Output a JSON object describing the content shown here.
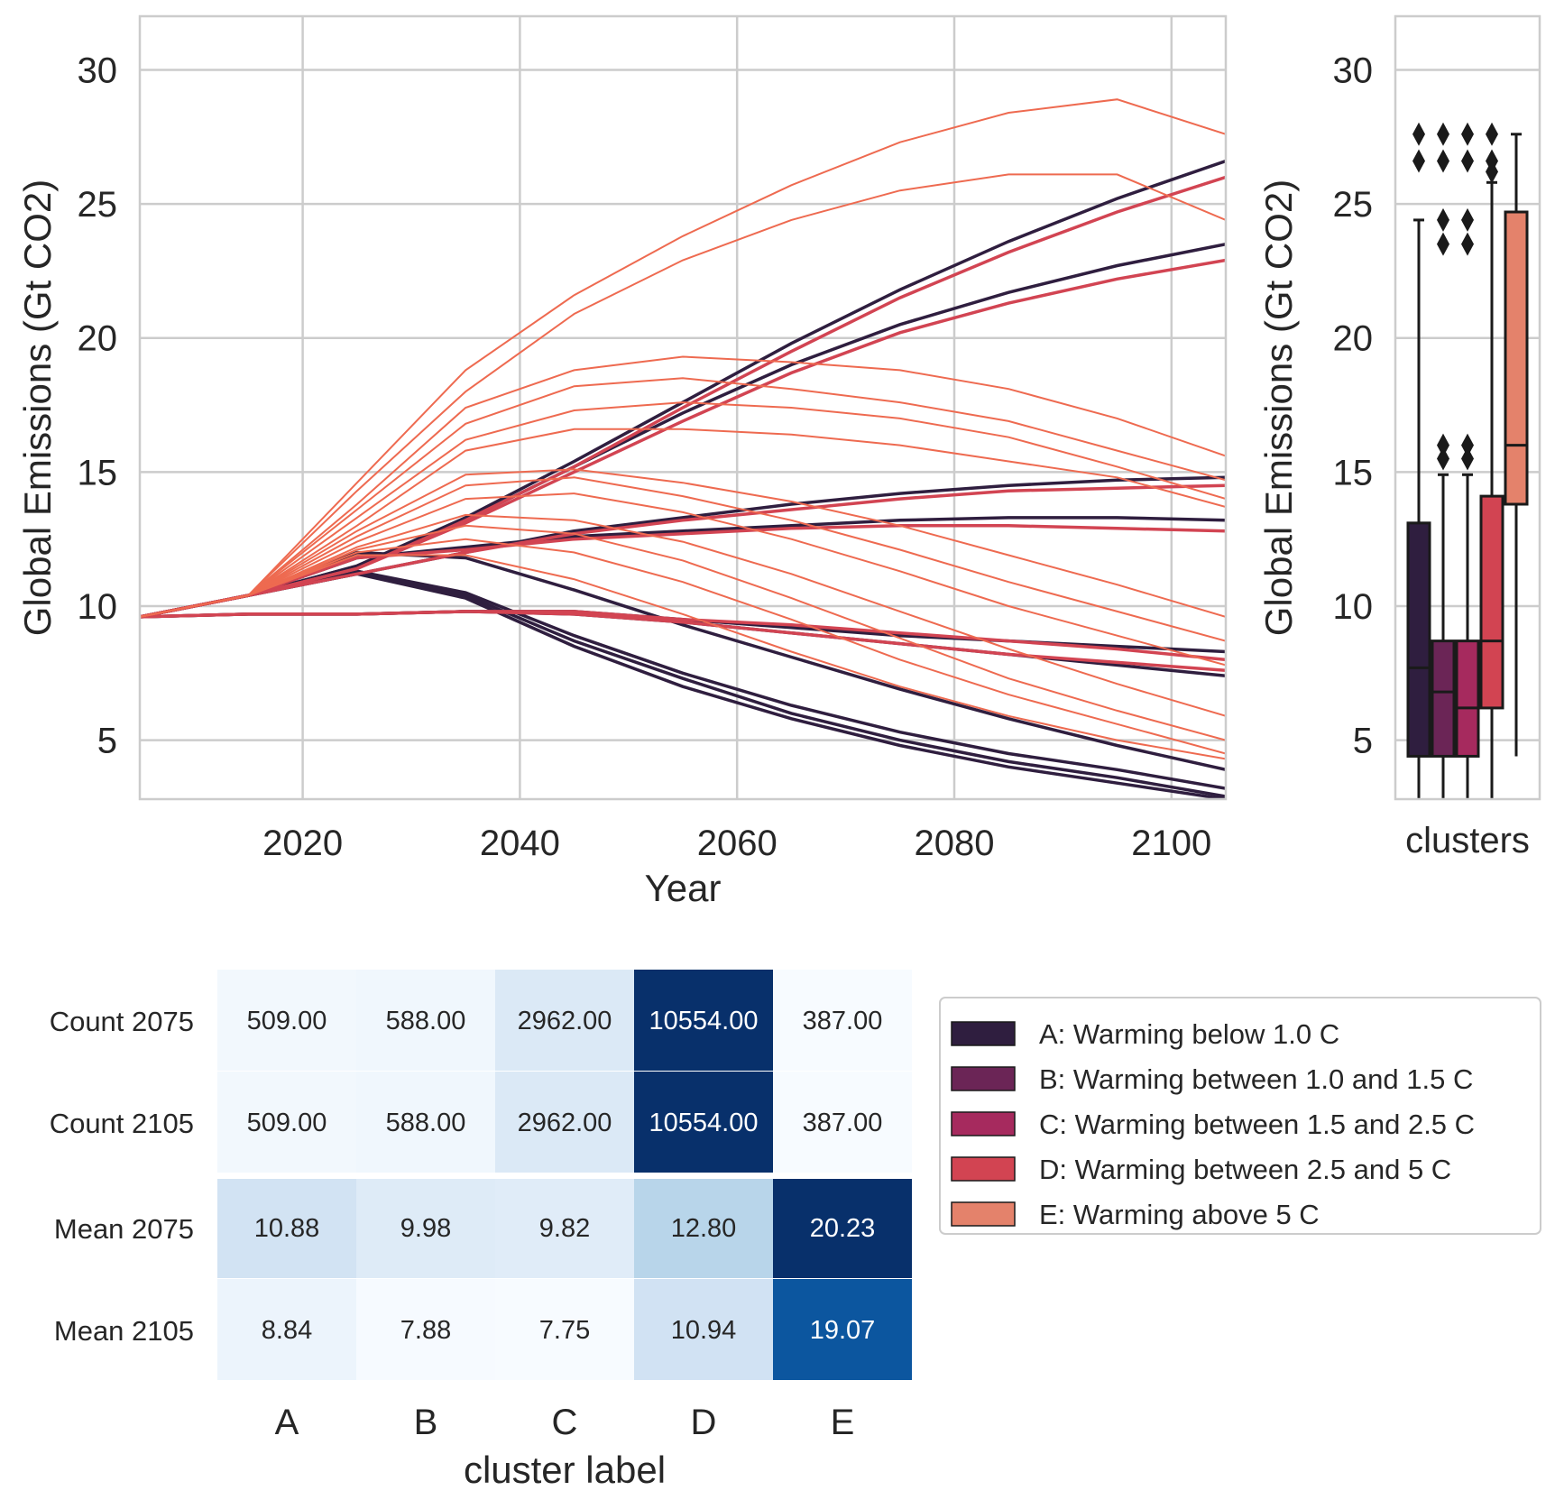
{
  "colors": {
    "A": "#2f1e3f",
    "B": "#6b2556",
    "C": "#a62a5e",
    "D": "#d24452",
    "E": "#e4826b",
    "lines_above_bulk": "#ee6a50",
    "grid": "#cccccc",
    "heatmap_low": "#f7fbff",
    "heatmap_high": "#08306b"
  },
  "chart_data": [
    {
      "type": "line",
      "title": "",
      "xlabel": "Year",
      "ylabel": "Global Emissions (Gt CO2)",
      "xlim": [
        2005,
        2105
      ],
      "ylim": [
        2.8,
        32
      ],
      "xticks": [
        2020,
        2040,
        2060,
        2080,
        2100
      ],
      "yticks": [
        5,
        10,
        15,
        20,
        25,
        30
      ],
      "grid": true,
      "x": [
        2005,
        2015,
        2025,
        2035,
        2045,
        2055,
        2065,
        2075,
        2085,
        2095,
        2105
      ],
      "series_note_free": true,
      "series": [
        {
          "cluster": "A",
          "values": [
            9.6,
            10.4,
            11.3,
            10.5,
            8.9,
            7.5,
            6.3,
            5.3,
            4.5,
            3.9,
            3.2
          ]
        },
        {
          "cluster": "A",
          "values": [
            9.6,
            10.4,
            11.3,
            10.4,
            8.7,
            7.3,
            6.0,
            5.0,
            4.2,
            3.6,
            2.9
          ]
        },
        {
          "cluster": "A",
          "values": [
            9.6,
            10.4,
            11.2,
            10.3,
            8.5,
            7.0,
            5.8,
            4.8,
            4.0,
            3.4,
            2.8
          ]
        },
        {
          "cluster": "A",
          "values": [
            9.6,
            10.4,
            12.0,
            11.8,
            10.6,
            9.3,
            8.1,
            6.9,
            5.8,
            4.8,
            3.9
          ]
        },
        {
          "cluster": "A",
          "values": [
            9.6,
            9.7,
            9.7,
            9.8,
            9.8,
            9.5,
            9.2,
            8.9,
            8.7,
            8.5,
            8.3
          ]
        },
        {
          "cluster": "A",
          "values": [
            9.6,
            9.7,
            9.7,
            9.8,
            9.7,
            9.4,
            9.0,
            8.6,
            8.2,
            7.8,
            7.4
          ]
        },
        {
          "cluster": "A",
          "values": [
            9.6,
            10.4,
            11.8,
            12.2,
            12.6,
            12.8,
            13.0,
            13.2,
            13.3,
            13.3,
            13.2
          ]
        },
        {
          "cluster": "A",
          "values": [
            9.6,
            10.4,
            11.2,
            12.0,
            12.8,
            13.3,
            13.8,
            14.2,
            14.5,
            14.7,
            14.8
          ]
        },
        {
          "cluster": "A",
          "values": [
            9.6,
            10.4,
            11.5,
            13.2,
            15.2,
            17.2,
            19.0,
            20.5,
            21.7,
            22.7,
            23.5
          ]
        },
        {
          "cluster": "A",
          "values": [
            9.6,
            10.4,
            11.5,
            13.3,
            15.4,
            17.6,
            19.8,
            21.8,
            23.6,
            25.2,
            26.6
          ]
        },
        {
          "cluster": "D",
          "values": [
            9.6,
            10.4,
            11.4,
            13.1,
            15.0,
            16.9,
            18.7,
            20.2,
            21.3,
            22.2,
            22.9
          ]
        },
        {
          "cluster": "D",
          "values": [
            9.6,
            10.4,
            11.4,
            13.2,
            15.2,
            17.4,
            19.5,
            21.5,
            23.2,
            24.7,
            26.0
          ]
        },
        {
          "cluster": "D",
          "values": [
            9.6,
            10.4,
            11.2,
            12.0,
            12.7,
            13.2,
            13.6,
            14.0,
            14.3,
            14.4,
            14.5
          ]
        },
        {
          "cluster": "D",
          "values": [
            9.6,
            10.4,
            11.8,
            12.1,
            12.5,
            12.7,
            12.9,
            13.0,
            13.0,
            12.9,
            12.8
          ]
        },
        {
          "cluster": "D",
          "values": [
            9.6,
            9.7,
            9.7,
            9.8,
            9.7,
            9.4,
            9.0,
            8.6,
            8.2,
            7.9,
            7.6
          ]
        },
        {
          "cluster": "D",
          "values": [
            9.6,
            9.7,
            9.7,
            9.8,
            9.8,
            9.5,
            9.3,
            9.0,
            8.7,
            8.4,
            8.0
          ]
        },
        {
          "cluster": "E",
          "values": [
            9.6,
            10.4,
            14.6,
            18.8,
            21.6,
            23.8,
            25.7,
            27.3,
            28.4,
            28.9,
            27.6
          ]
        },
        {
          "cluster": "E",
          "values": [
            9.6,
            10.4,
            14.3,
            18.0,
            20.9,
            22.9,
            24.4,
            25.5,
            26.1,
            26.1,
            24.4
          ]
        },
        {
          "cluster": "E",
          "values": [
            9.6,
            10.4,
            13.8,
            17.4,
            18.8,
            19.3,
            19.1,
            18.8,
            18.1,
            17.0,
            15.6
          ]
        },
        {
          "cluster": "E",
          "values": [
            9.6,
            10.4,
            13.6,
            16.8,
            18.2,
            18.5,
            18.1,
            17.6,
            16.9,
            15.8,
            14.7
          ]
        },
        {
          "cluster": "E",
          "values": [
            9.6,
            10.4,
            13.3,
            16.2,
            17.3,
            17.6,
            17.4,
            17.0,
            16.3,
            15.2,
            14.0
          ]
        },
        {
          "cluster": "E",
          "values": [
            9.6,
            10.4,
            13.0,
            15.8,
            16.6,
            16.6,
            16.4,
            16.0,
            15.4,
            14.8,
            13.7
          ]
        },
        {
          "cluster": "E",
          "values": [
            9.6,
            10.4,
            12.8,
            14.9,
            15.1,
            14.6,
            13.9,
            13.0,
            11.9,
            10.8,
            9.6
          ]
        },
        {
          "cluster": "E",
          "values": [
            9.6,
            10.4,
            12.6,
            14.5,
            14.8,
            14.1,
            13.2,
            12.1,
            10.9,
            9.8,
            8.7
          ]
        },
        {
          "cluster": "E",
          "values": [
            9.6,
            10.4,
            12.4,
            14.0,
            14.2,
            13.5,
            12.5,
            11.3,
            10.0,
            8.9,
            7.8
          ]
        },
        {
          "cluster": "E",
          "values": [
            9.6,
            10.4,
            12.2,
            13.4,
            13.2,
            12.4,
            11.2,
            9.8,
            8.4,
            7.1,
            5.9
          ]
        },
        {
          "cluster": "E",
          "values": [
            9.6,
            10.4,
            12.1,
            13.0,
            12.7,
            11.7,
            10.3,
            8.8,
            7.3,
            6.1,
            5.0
          ]
        },
        {
          "cluster": "E",
          "values": [
            9.6,
            10.4,
            12.0,
            12.5,
            12.0,
            10.9,
            9.5,
            8.0,
            6.7,
            5.6,
            4.5
          ]
        },
        {
          "cluster": "E",
          "values": [
            9.6,
            10.4,
            11.9,
            11.9,
            11.0,
            9.7,
            8.3,
            7.0,
            5.9,
            5.0,
            4.3
          ]
        }
      ]
    },
    {
      "type": "box",
      "xlabel": "clusters",
      "ylabel": "Global Emissions (Gt CO2)",
      "ylim": [
        2.8,
        32
      ],
      "yticks": [
        5,
        10,
        15,
        20,
        25,
        30
      ],
      "boxes": [
        {
          "cluster": "A",
          "whisker_low": 2.8,
          "q1": 4.4,
          "median": 7.7,
          "q3": 13.1,
          "whisker_high": 24.4,
          "outliers": [
            26.6,
            27.6
          ]
        },
        {
          "cluster": "B",
          "whisker_low": 2.8,
          "q1": 4.4,
          "median": 6.8,
          "q3": 8.7,
          "whisker_high": 14.9,
          "outliers": [
            15.5,
            16.0,
            23.5,
            24.4,
            26.6,
            27.6
          ]
        },
        {
          "cluster": "C",
          "whisker_low": 2.8,
          "q1": 4.4,
          "median": 6.2,
          "q3": 8.7,
          "whisker_high": 14.9,
          "outliers": [
            15.5,
            16.0,
            23.5,
            24.4,
            26.6,
            27.6
          ]
        },
        {
          "cluster": "D",
          "whisker_low": 2.8,
          "q1": 6.2,
          "median": 8.7,
          "q3": 14.1,
          "whisker_high": 25.8,
          "outliers": [
            26.2,
            26.6,
            27.6
          ]
        },
        {
          "cluster": "E",
          "whisker_low": 4.4,
          "q1": 13.8,
          "median": 16.0,
          "q3": 24.7,
          "whisker_high": 27.6,
          "outliers": []
        }
      ]
    },
    {
      "type": "heatmap",
      "xlabel": "cluster label",
      "columns": [
        "A",
        "B",
        "C",
        "D",
        "E"
      ],
      "rows": [
        {
          "label": "Count 2075",
          "values": [
            "509.00",
            "588.00",
            "2962.00",
            "10554.00",
            "387.00"
          ],
          "num": [
            509,
            588,
            2962,
            10554,
            387
          ]
        },
        {
          "label": "Count 2105",
          "values": [
            "509.00",
            "588.00",
            "2962.00",
            "10554.00",
            "387.00"
          ],
          "num": [
            509,
            588,
            2962,
            10554,
            387
          ]
        },
        {
          "label": "Mean 2075",
          "values": [
            "10.88",
            "9.98",
            "9.82",
            "12.80",
            "20.23"
          ],
          "num": [
            10.88,
            9.98,
            9.82,
            12.8,
            20.23
          ]
        },
        {
          "label": "Mean 2105",
          "values": [
            "8.84",
            "7.88",
            "7.75",
            "10.94",
            "19.07"
          ],
          "num": [
            8.84,
            7.88,
            7.75,
            10.94,
            19.07
          ]
        }
      ]
    }
  ],
  "legend": [
    {
      "key": "A",
      "label": "A: Warming below 1.0 C"
    },
    {
      "key": "B",
      "label": "B: Warming between 1.0 and 1.5 C"
    },
    {
      "key": "C",
      "label": "C: Warming between 1.5 and 2.5 C"
    },
    {
      "key": "D",
      "label": "D: Warming between 2.5 and 5 C"
    },
    {
      "key": "E",
      "label": "E: Warming above 5 C"
    }
  ]
}
